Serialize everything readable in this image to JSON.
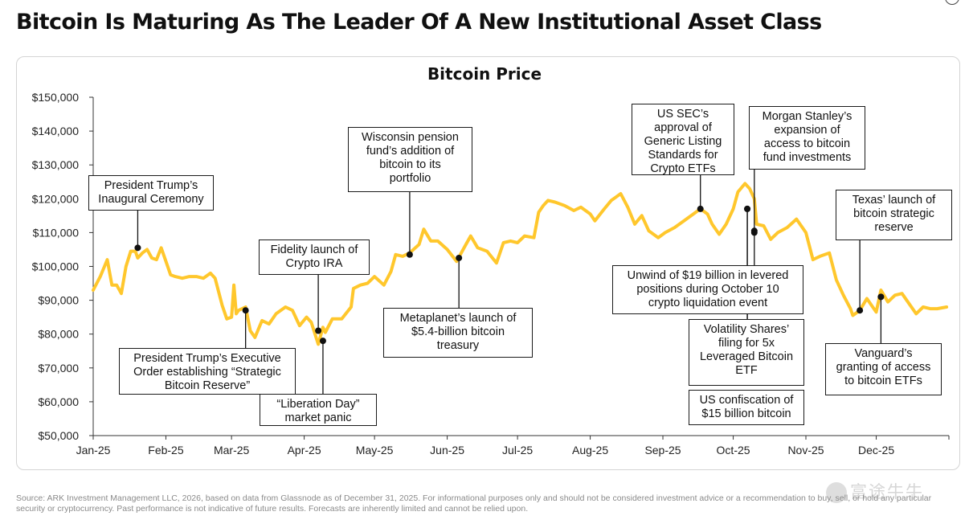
{
  "headline": "Bitcoin Is Maturing As The Leader Of A New Institutional Asset Class",
  "footer": "Source: ARK Investment Management LLC, 2026, based on data from Glassnode as of December 31, 2025. For informational purposes only and should not be considered investment advice or a recommendation to buy, sell, or hold any particular security or cryptocurrency. Past performance is not indicative of future results. Forecasts are inherently limited and cannot be relied upon.",
  "watermark": "富途牛牛",
  "colors": {
    "line": "#FFC72C",
    "axis": "#333333",
    "text": "#111111"
  },
  "annotations": [
    {
      "id": "inauguration",
      "text": "President Trump’s\nInaugural Ceremony"
    },
    {
      "id": "executive-order",
      "text": "President Trump’s Executive\nOrder establishing “Strategic\nBitcoin Reserve”"
    },
    {
      "id": "fidelity-ira",
      "text": "Fidelity launch of\nCrypto IRA"
    },
    {
      "id": "liberation-day",
      "text": "“Liberation Day”\nmarket panic"
    },
    {
      "id": "wisconsin",
      "text": "Wisconsin pension\nfund’s addition of\nbitcoin to its\nportfolio"
    },
    {
      "id": "metaplanet",
      "text": "Metaplanet’s launch of\n$5.4-billion bitcoin\ntreasury"
    },
    {
      "id": "sec-listing",
      "text": "US SEC’s\napproval of\nGeneric Listing\nStandards for\nCrypto ETFs"
    },
    {
      "id": "morgan-stanley",
      "text": "Morgan Stanley’s\nexpansion of\naccess to bitcoin\nfund investments"
    },
    {
      "id": "unwind",
      "text": "Unwind of $19 billion in levered\npositions during October 10\ncrypto liquidation event"
    },
    {
      "id": "volatility-shares",
      "text": "Volatility Shares’\nfiling for 5x\nLeveraged Bitcoin\nETF"
    },
    {
      "id": "confiscation",
      "text": "US confiscation of\n$15 billion bitcoin"
    },
    {
      "id": "texas",
      "text": "Texas’ launch of\nbitcoin strategic\nreserve"
    },
    {
      "id": "vanguard",
      "text": "Vanguard’s\ngranting of access\nto bitcoin ETFs"
    }
  ],
  "chart_data": {
    "type": "line",
    "title": "Bitcoin Price",
    "xlabel": "",
    "ylabel": "",
    "ylim": [
      50000,
      150000
    ],
    "xlim": [
      "2025-01-01",
      "2025-12-31"
    ],
    "grid": false,
    "x_ticks": [
      "Jan-25",
      "Feb-25",
      "Mar-25",
      "Apr-25",
      "May-25",
      "Jun-25",
      "Jul-25",
      "Aug-25",
      "Sep-25",
      "Oct-25",
      "Nov-25",
      "Dec-25"
    ],
    "y_ticks": [
      "$150,000",
      "$140,000",
      "$130,000",
      "$120,000",
      "$110,000",
      "$100,000",
      "$90,000",
      "$80,000",
      "$70,000",
      "$60,000",
      "$50,000"
    ],
    "y_tick_values": [
      150000,
      140000,
      130000,
      120000,
      110000,
      100000,
      90000,
      80000,
      70000,
      60000,
      50000
    ],
    "series": [
      {
        "name": "Bitcoin Price",
        "color": "#FFC72C",
        "x": [
          "2025-01-01",
          "2025-01-04",
          "2025-01-07",
          "2025-01-09",
          "2025-01-11",
          "2025-01-13",
          "2025-01-15",
          "2025-01-17",
          "2025-01-19",
          "2025-01-20",
          "2025-01-22",
          "2025-01-24",
          "2025-01-26",
          "2025-01-28",
          "2025-01-30",
          "2025-02-01",
          "2025-02-03",
          "2025-02-05",
          "2025-02-08",
          "2025-02-11",
          "2025-02-14",
          "2025-02-17",
          "2025-02-20",
          "2025-02-22",
          "2025-02-25",
          "2025-02-27",
          "2025-03-01",
          "2025-03-02",
          "2025-03-03",
          "2025-03-04",
          "2025-03-07",
          "2025-03-09",
          "2025-03-11",
          "2025-03-14",
          "2025-03-17",
          "2025-03-20",
          "2025-03-24",
          "2025-03-27",
          "2025-03-30",
          "2025-04-02",
          "2025-04-04",
          "2025-04-07",
          "2025-04-09",
          "2025-04-10",
          "2025-04-13",
          "2025-04-17",
          "2025-04-21",
          "2025-04-22",
          "2025-04-25",
          "2025-04-28",
          "2025-05-01",
          "2025-05-05",
          "2025-05-08",
          "2025-05-10",
          "2025-05-13",
          "2025-05-16",
          "2025-05-20",
          "2025-05-22",
          "2025-05-25",
          "2025-05-28",
          "2025-06-01",
          "2025-06-05",
          "2025-06-09",
          "2025-06-11",
          "2025-06-14",
          "2025-06-18",
          "2025-06-22",
          "2025-06-25",
          "2025-06-28",
          "2025-07-01",
          "2025-07-04",
          "2025-07-08",
          "2025-07-10",
          "2025-07-12",
          "2025-07-14",
          "2025-07-17",
          "2025-07-21",
          "2025-07-25",
          "2025-07-28",
          "2025-08-01",
          "2025-08-03",
          "2025-08-07",
          "2025-08-10",
          "2025-08-14",
          "2025-08-17",
          "2025-08-20",
          "2025-08-23",
          "2025-08-26",
          "2025-08-30",
          "2025-09-02",
          "2025-09-06",
          "2025-09-10",
          "2025-09-14",
          "2025-09-17",
          "2025-09-20",
          "2025-09-22",
          "2025-09-25",
          "2025-09-28",
          "2025-10-01",
          "2025-10-03",
          "2025-10-06",
          "2025-10-08",
          "2025-10-10",
          "2025-10-11",
          "2025-10-14",
          "2025-10-17",
          "2025-10-20",
          "2025-10-24",
          "2025-10-28",
          "2025-11-01",
          "2025-11-04",
          "2025-11-07",
          "2025-11-11",
          "2025-11-14",
          "2025-11-17",
          "2025-11-20",
          "2025-11-21",
          "2025-11-24",
          "2025-11-27",
          "2025-12-01",
          "2025-12-03",
          "2025-12-06",
          "2025-12-09",
          "2025-12-12",
          "2025-12-15",
          "2025-12-18",
          "2025-12-21",
          "2025-12-24",
          "2025-12-27",
          "2025-12-31"
        ],
        "values": [
          93000,
          97000,
          102000,
          94500,
          94500,
          92000,
          100000,
          104500,
          104500,
          102500,
          104000,
          105000,
          102500,
          102000,
          105500,
          101500,
          97500,
          97000,
          96500,
          97000,
          97000,
          96500,
          98000,
          96500,
          88500,
          84500,
          85000,
          94500,
          86000,
          87000,
          88000,
          81000,
          79000,
          84000,
          83000,
          86000,
          88000,
          87000,
          82500,
          85000,
          83500,
          77000,
          82000,
          80500,
          84500,
          84500,
          88000,
          93500,
          94500,
          95000,
          97000,
          94500,
          98500,
          103500,
          103000,
          104000,
          106500,
          111000,
          107500,
          107500,
          105000,
          101500,
          106500,
          109000,
          105500,
          104500,
          101000,
          107000,
          107500,
          107000,
          109000,
          108500,
          116000,
          118000,
          119500,
          119000,
          118000,
          116500,
          117500,
          115500,
          113500,
          117000,
          119500,
          121500,
          117500,
          112500,
          115000,
          110500,
          108500,
          110000,
          111500,
          113500,
          115500,
          117000,
          115500,
          112500,
          109500,
          112500,
          117000,
          122000,
          124500,
          123000,
          120000,
          112500,
          112000,
          108000,
          110000,
          111500,
          114000,
          110000,
          102000,
          103000,
          104000,
          96000,
          91500,
          87500,
          85500,
          87000,
          90500,
          86500,
          93000,
          89500,
          91500,
          92000,
          89000,
          86000,
          88000,
          87500,
          87500,
          88000
        ]
      }
    ],
    "markers": [
      {
        "event": "inauguration",
        "x": "2025-01-20",
        "y": 105500
      },
      {
        "event": "executive-order",
        "x": "2025-03-07",
        "y": 87000
      },
      {
        "event": "fidelity-ira",
        "x": "2025-04-07",
        "y": 81000
      },
      {
        "event": "liberation-day",
        "x": "2025-04-09",
        "y": 78000
      },
      {
        "event": "wisconsin",
        "x": "2025-05-16",
        "y": 103500
      },
      {
        "event": "metaplanet",
        "x": "2025-06-06",
        "y": 102500
      },
      {
        "event": "sec-listing",
        "x": "2025-09-17",
        "y": 117000
      },
      {
        "event": "morgan-stanley",
        "x": "2025-10-10",
        "y": 110500
      },
      {
        "event": "unwind",
        "x": "2025-10-10",
        "y": 110000
      },
      {
        "event": "volatility-shares",
        "x": "2025-10-07",
        "y": 117000
      },
      {
        "event": "confiscation",
        "x": "2025-10-07",
        "y": 117000
      },
      {
        "event": "texas",
        "x": "2025-11-24",
        "y": 87000
      },
      {
        "event": "vanguard",
        "x": "2025-12-03",
        "y": 91000
      }
    ]
  }
}
